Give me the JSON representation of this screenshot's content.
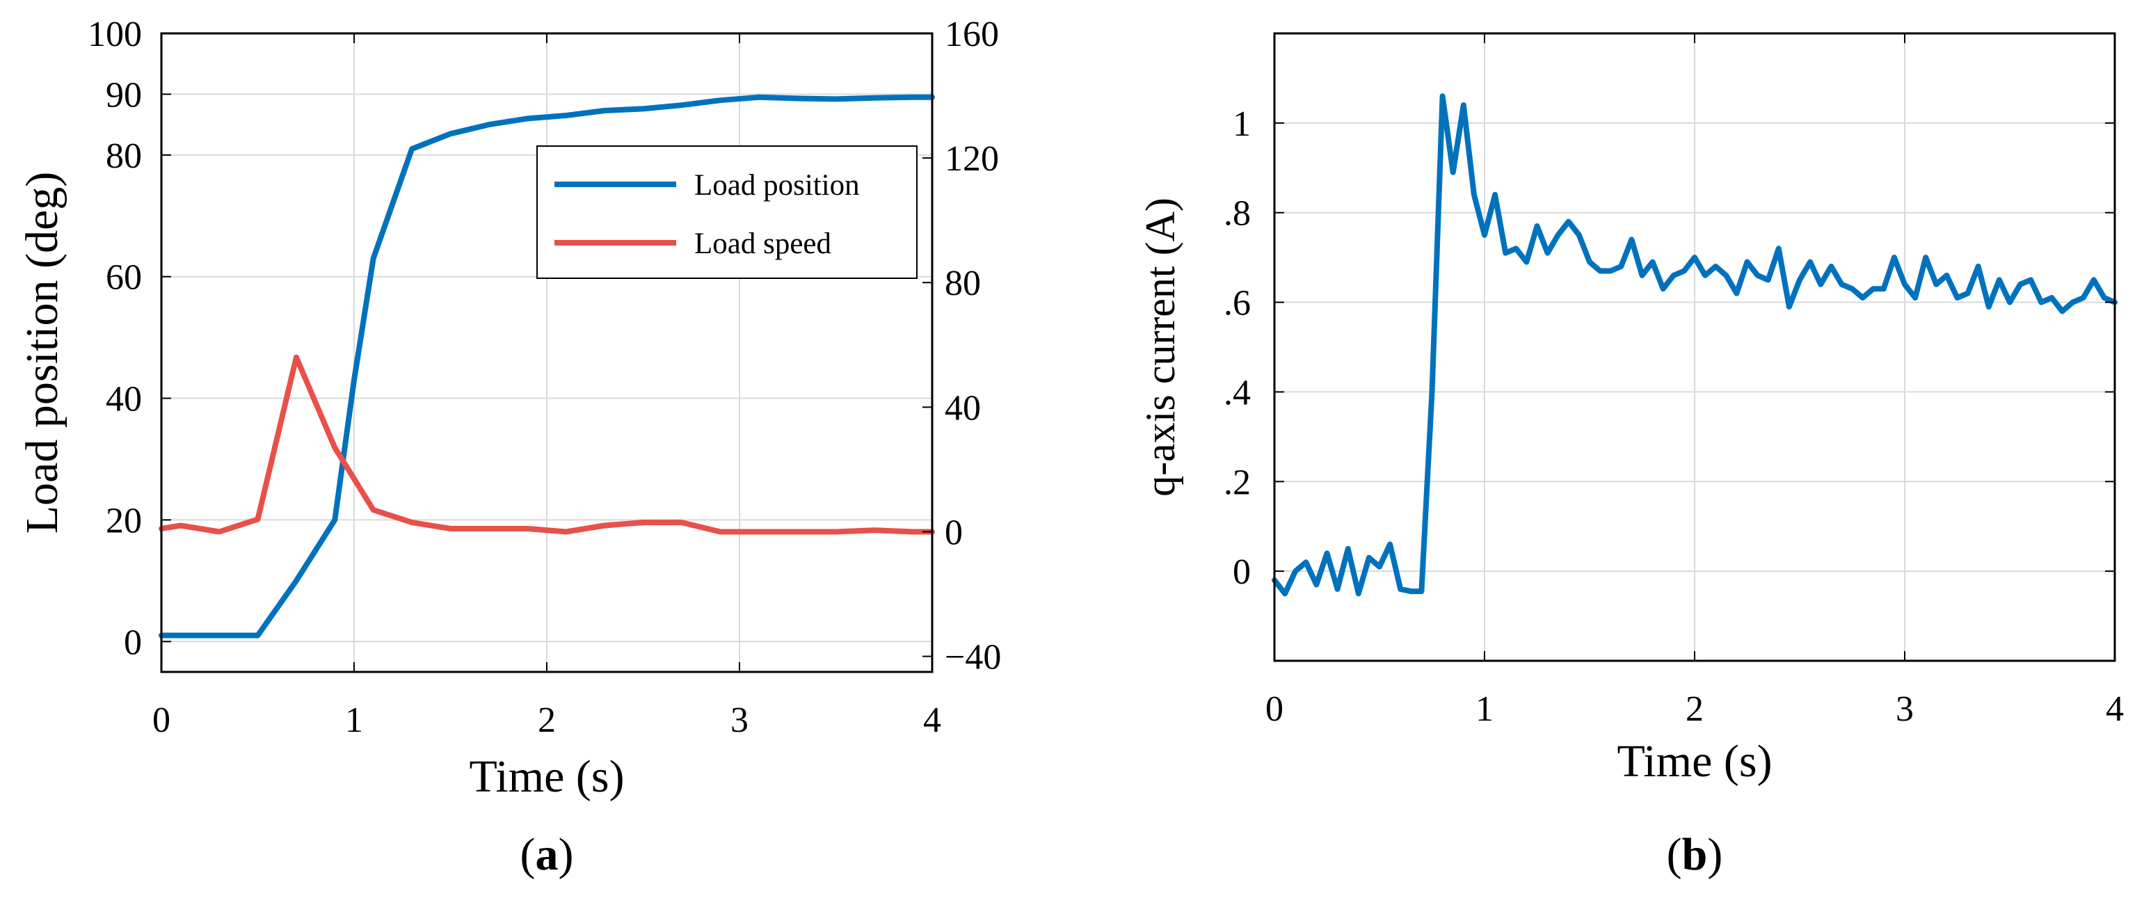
{
  "panels": {
    "a": {
      "label_open": "(",
      "label_letter": "a",
      "label_close": ")"
    },
    "b": {
      "label_open": "(",
      "label_letter": "b",
      "label_close": ")"
    }
  },
  "colors": {
    "blue": "#0072BD",
    "red": "#E8504A",
    "grid": "#d9d9d9",
    "axis": "#000000"
  },
  "chart_data": [
    {
      "id": "a",
      "type": "line",
      "xlabel": "Time (s)",
      "ylabel": "Load position (deg)",
      "xlim": [
        0,
        4
      ],
      "ylim": [
        -5,
        100
      ],
      "y2lim": [
        -45,
        160
      ],
      "xticks": [
        0,
        1,
        2,
        3,
        4
      ],
      "yticks": [
        0,
        20,
        40,
        60,
        80,
        90,
        100
      ],
      "y2ticks": [
        -40,
        0,
        40,
        80,
        120,
        160
      ],
      "y2ticklabels": [
        "−40",
        "0",
        "40",
        "80",
        "120",
        "160"
      ],
      "grid": true,
      "legend": {
        "position": "upper-right"
      },
      "series": [
        {
          "name": "Load position",
          "axis": "left",
          "color": "#0072BD",
          "x": [
            0,
            0.1,
            0.3,
            0.5,
            0.7,
            0.9,
            1.0,
            1.1,
            1.3,
            1.5,
            1.7,
            1.9,
            2.1,
            2.3,
            2.5,
            2.7,
            2.9,
            3.1,
            3.3,
            3.5,
            3.7,
            3.9,
            4.0
          ],
          "y": [
            1,
            1,
            1,
            1,
            10,
            20,
            43,
            63,
            81,
            83.5,
            85,
            86,
            86.5,
            87.3,
            87.6,
            88.2,
            89,
            89.5,
            89.3,
            89.2,
            89.4,
            89.5,
            89.5
          ]
        },
        {
          "name": "Load speed",
          "axis": "right",
          "color": "#E8504A",
          "x": [
            0,
            0.1,
            0.3,
            0.5,
            0.7,
            0.9,
            1.1,
            1.3,
            1.5,
            1.7,
            1.9,
            2.1,
            2.3,
            2.5,
            2.7,
            2.9,
            3.1,
            3.3,
            3.5,
            3.7,
            3.9,
            4.0
          ],
          "y": [
            1,
            2,
            0,
            4,
            56,
            27,
            7,
            3,
            1,
            1,
            1,
            0,
            2,
            3,
            3,
            0,
            0,
            0,
            0,
            0.5,
            0,
            0
          ]
        }
      ]
    },
    {
      "id": "b",
      "type": "line",
      "xlabel": "Time (s)",
      "ylabel": "q-axis current (A)",
      "xlim": [
        0,
        4
      ],
      "ylim": [
        -0.2,
        1.2
      ],
      "xticks": [
        0,
        1,
        2,
        3,
        4
      ],
      "yticks": [
        0,
        0.2,
        0.4,
        0.6,
        0.8,
        1
      ],
      "grid": true,
      "series": [
        {
          "color": "#0072BD",
          "x": [
            0,
            0.05,
            0.1,
            0.15,
            0.2,
            0.25,
            0.3,
            0.35,
            0.4,
            0.45,
            0.5,
            0.55,
            0.6,
            0.65,
            0.7,
            0.75,
            0.8,
            0.85,
            0.9,
            0.95,
            1.0,
            1.05,
            1.1,
            1.15,
            1.2,
            1.25,
            1.3,
            1.35,
            1.4,
            1.45,
            1.5,
            1.55,
            1.6,
            1.65,
            1.7,
            1.75,
            1.8,
            1.85,
            1.9,
            1.95,
            2.0,
            2.05,
            2.1,
            2.15,
            2.2,
            2.25,
            2.3,
            2.35,
            2.4,
            2.45,
            2.5,
            2.55,
            2.6,
            2.65,
            2.7,
            2.75,
            2.8,
            2.85,
            2.9,
            2.95,
            3.0,
            3.05,
            3.1,
            3.15,
            3.2,
            3.25,
            3.3,
            3.35,
            3.4,
            3.45,
            3.5,
            3.55,
            3.6,
            3.65,
            3.7,
            3.75,
            3.8,
            3.85,
            3.9,
            3.95,
            4.0
          ],
          "y": [
            -0.02,
            -0.05,
            0.0,
            0.02,
            -0.03,
            0.04,
            -0.04,
            0.05,
            -0.05,
            0.03,
            0.01,
            0.06,
            -0.04,
            -0.045,
            -0.045,
            0.4,
            1.06,
            0.89,
            1.04,
            0.84,
            0.75,
            0.84,
            0.71,
            0.72,
            0.69,
            0.77,
            0.71,
            0.75,
            0.78,
            0.75,
            0.69,
            0.67,
            0.67,
            0.68,
            0.74,
            0.66,
            0.69,
            0.63,
            0.66,
            0.67,
            0.7,
            0.66,
            0.68,
            0.66,
            0.62,
            0.69,
            0.66,
            0.65,
            0.72,
            0.59,
            0.65,
            0.69,
            0.64,
            0.68,
            0.64,
            0.63,
            0.61,
            0.63,
            0.63,
            0.7,
            0.64,
            0.61,
            0.7,
            0.64,
            0.66,
            0.61,
            0.62,
            0.68,
            0.59,
            0.65,
            0.6,
            0.64,
            0.65,
            0.6,
            0.61,
            0.58,
            0.6,
            0.61,
            0.65,
            0.61,
            0.6
          ]
        }
      ]
    }
  ]
}
